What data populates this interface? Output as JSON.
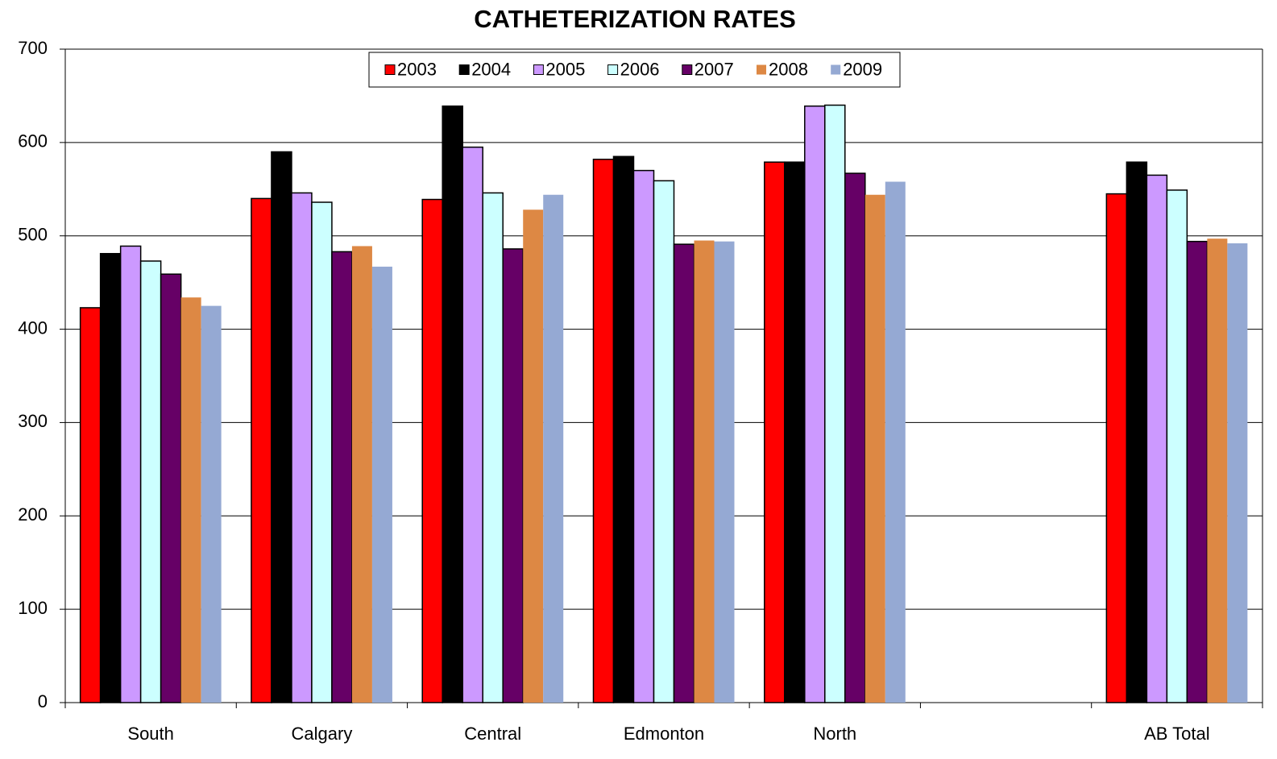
{
  "chart_data": {
    "type": "bar",
    "title": "CATHETERIZATION RATES",
    "categories": [
      "South",
      "Calgary",
      "Central",
      "Edmonton",
      "North",
      null,
      "AB Total"
    ],
    "series": [
      {
        "name": "2003",
        "color": "#ff0000",
        "edgecolor": "#000000",
        "values": [
          423,
          540,
          539,
          582,
          579,
          null,
          545
        ]
      },
      {
        "name": "2004",
        "color": "#000000",
        "edgecolor": "#000000",
        "values": [
          481,
          590,
          639,
          585,
          579,
          null,
          579
        ]
      },
      {
        "name": "2005",
        "color": "#cc99ff",
        "edgecolor": "#000000",
        "values": [
          489,
          546,
          595,
          570,
          639,
          null,
          565
        ]
      },
      {
        "name": "2006",
        "color": "#ccffff",
        "edgecolor": "#000000",
        "values": [
          473,
          536,
          546,
          559,
          640,
          null,
          549
        ]
      },
      {
        "name": "2007",
        "color": "#660066",
        "edgecolor": "#000000",
        "values": [
          459,
          483,
          486,
          491,
          567,
          null,
          494
        ]
      },
      {
        "name": "2008",
        "color": "#dd8844",
        "values": [
          434,
          489,
          528,
          495,
          544,
          null,
          497
        ]
      },
      {
        "name": "2009",
        "color": "#95a9d3",
        "values": [
          425,
          467,
          544,
          494,
          558,
          null,
          492
        ]
      }
    ],
    "ylim": [
      0,
      700
    ],
    "yticks": [
      0,
      100,
      200,
      300,
      400,
      500,
      600,
      700
    ],
    "grid": true,
    "legend": "top"
  }
}
